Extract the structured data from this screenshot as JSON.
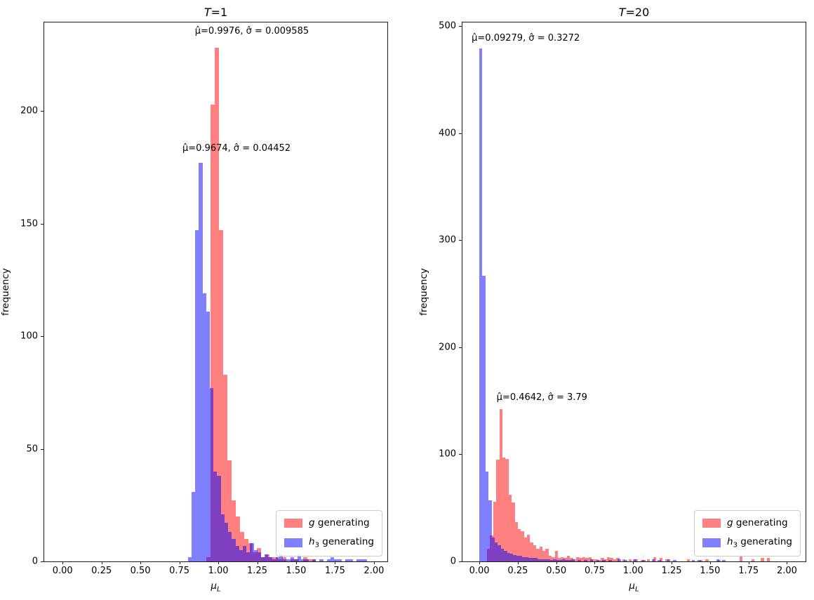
{
  "figure": {
    "background": "#ffffff",
    "colors": {
      "red_series": "#ff8080",
      "blue_series_rgba": "rgba(0,0,255,0.5)",
      "blue_legend_patch": "#8080ff",
      "overlap_visual": "#7f3fbf",
      "spine": "#1a1a1a",
      "legend_border": "#cccccc"
    }
  },
  "chart_data": [
    {
      "type": "histogram",
      "title": {
        "var": "T",
        "rest": "=1"
      },
      "xlabel": {
        "var": "μ",
        "sub": "L"
      },
      "ylabel": "frequency",
      "xlim": [
        -0.118,
        2.086
      ],
      "ylim": [
        0,
        239.3
      ],
      "grid": false,
      "legend_position": "lower right",
      "xticks": [
        {
          "v": 0.0,
          "label": "0.00"
        },
        {
          "v": 0.25,
          "label": "0.25"
        },
        {
          "v": 0.5,
          "label": "0.50"
        },
        {
          "v": 0.75,
          "label": "0.75"
        },
        {
          "v": 1.0,
          "label": "1.00"
        },
        {
          "v": 1.25,
          "label": "1.25"
        },
        {
          "v": 1.5,
          "label": "1.50"
        },
        {
          "v": 1.75,
          "label": "1.75"
        },
        {
          "v": 2.0,
          "label": "2.00"
        }
      ],
      "yticks": [
        {
          "v": 0,
          "label": "0"
        },
        {
          "v": 50,
          "label": "50"
        },
        {
          "v": 100,
          "label": "100"
        },
        {
          "v": 150,
          "label": "150"
        },
        {
          "v": 200,
          "label": "200"
        }
      ],
      "annotations": [
        {
          "text": "μ̂=0.9976, σ̂ = 0.009585",
          "x": 0.85,
          "y": 233
        },
        {
          "text": "μ̂=0.9674, σ̂ = 0.04452",
          "x": 0.77,
          "y": 181
        }
      ],
      "legend": [
        {
          "var": "g",
          "rest": " generating",
          "color": "#ff8080"
        },
        {
          "var": "h",
          "sub": "3",
          "rest": " generating",
          "color": "#8080ff"
        }
      ],
      "series": [
        {
          "name": "g generating",
          "color": "#ff8080",
          "zorder": 1,
          "bin_width": 0.027,
          "bars": [
            [
              0.924,
              2
            ],
            [
              0.951,
              203
            ],
            [
              0.978,
              228
            ],
            [
              1.005,
              147
            ],
            [
              1.032,
              83
            ],
            [
              1.059,
              45
            ],
            [
              1.086,
              27
            ],
            [
              1.113,
              20
            ],
            [
              1.14,
              13
            ],
            [
              1.167,
              10
            ],
            [
              1.194,
              8
            ],
            [
              1.221,
              4
            ],
            [
              1.248,
              6
            ],
            [
              1.275,
              2
            ],
            [
              1.302,
              3
            ],
            [
              1.329,
              2
            ],
            [
              1.356,
              2
            ],
            [
              1.383,
              1
            ],
            [
              1.41,
              2
            ],
            [
              1.464,
              1
            ],
            [
              1.491,
              1
            ],
            [
              1.545,
              2
            ],
            [
              1.572,
              1
            ],
            [
              1.599,
              1
            ]
          ]
        },
        {
          "name": "h3 generating",
          "color": "rgba(0,0,255,0.5)",
          "zorder": 2,
          "bin_width": 0.0235,
          "bars": [
            [
              0.805,
              2
            ],
            [
              0.8285,
              31
            ],
            [
              0.852,
              147
            ],
            [
              0.8755,
              177
            ],
            [
              0.899,
              119
            ],
            [
              0.9225,
              111
            ],
            [
              0.946,
              77
            ],
            [
              0.9695,
              40
            ],
            [
              0.993,
              38
            ],
            [
              1.0165,
              21
            ],
            [
              1.04,
              17
            ],
            [
              1.0635,
              13
            ],
            [
              1.087,
              10
            ],
            [
              1.1105,
              7
            ],
            [
              1.134,
              5
            ],
            [
              1.1575,
              7
            ],
            [
              1.181,
              4
            ],
            [
              1.2045,
              8
            ],
            [
              1.228,
              5
            ],
            [
              1.2515,
              4
            ],
            [
              1.275,
              2
            ],
            [
              1.2985,
              3
            ],
            [
              1.322,
              2
            ],
            [
              1.3455,
              1
            ],
            [
              1.369,
              2
            ],
            [
              1.3925,
              3
            ],
            [
              1.416,
              1
            ],
            [
              1.4395,
              1
            ],
            [
              1.463,
              2
            ],
            [
              1.4865,
              1
            ],
            [
              1.51,
              3
            ],
            [
              1.5335,
              1
            ],
            [
              1.557,
              1
            ],
            [
              1.604,
              1
            ],
            [
              1.651,
              1
            ],
            [
              1.698,
              1
            ],
            [
              1.7215,
              2
            ],
            [
              1.745,
              1
            ],
            [
              1.7685,
              1
            ],
            [
              1.816,
              1
            ],
            [
              1.8395,
              1
            ],
            [
              1.887,
              1
            ],
            [
              1.9105,
              1
            ],
            [
              1.934,
              1
            ]
          ]
        }
      ]
    },
    {
      "type": "histogram",
      "title": {
        "var": "T",
        "rest": "=20"
      },
      "xlabel": {
        "var": "μ",
        "sub": "L"
      },
      "ylabel": "frequency",
      "xlim": [
        -0.11,
        2.121
      ],
      "ylim": [
        0,
        503.4
      ],
      "grid": false,
      "legend_position": "lower right",
      "xticks": [
        {
          "v": 0.0,
          "label": "0.00"
        },
        {
          "v": 0.25,
          "label": "0.25"
        },
        {
          "v": 0.5,
          "label": "0.50"
        },
        {
          "v": 0.75,
          "label": "0.75"
        },
        {
          "v": 1.0,
          "label": "1.00"
        },
        {
          "v": 1.25,
          "label": "1.25"
        },
        {
          "v": 1.5,
          "label": "1.50"
        },
        {
          "v": 1.75,
          "label": "1.75"
        },
        {
          "v": 2.0,
          "label": "2.00"
        }
      ],
      "yticks": [
        {
          "v": 0,
          "label": "0"
        },
        {
          "v": 100,
          "label": "100"
        },
        {
          "v": 200,
          "label": "200"
        },
        {
          "v": 300,
          "label": "300"
        },
        {
          "v": 400,
          "label": "400"
        },
        {
          "v": 500,
          "label": "500"
        }
      ],
      "annotations": [
        {
          "text": "μ̂=0.09279, σ̂ = 0.3272",
          "x": -0.05,
          "y": 484
        },
        {
          "text": "μ̂=0.4642, σ̂ = 3.79",
          "x": 0.112,
          "y": 148
        }
      ],
      "legend": [
        {
          "var": "g",
          "rest": " generating",
          "color": "#ff8080"
        },
        {
          "var": "h",
          "sub": "3",
          "rest": " generating",
          "color": "#8080ff"
        }
      ],
      "series": [
        {
          "name": "g generating",
          "color": "#ff8080",
          "zorder": 1,
          "bin_width": 0.02,
          "bars": [
            [
              0.05,
              12
            ],
            [
              0.07,
              24
            ],
            [
              0.09,
              56
            ],
            [
              0.11,
              95
            ],
            [
              0.13,
              142
            ],
            [
              0.15,
              97
            ],
            [
              0.17,
              96
            ],
            [
              0.19,
              62
            ],
            [
              0.21,
              55
            ],
            [
              0.23,
              37
            ],
            [
              0.25,
              30
            ],
            [
              0.27,
              28
            ],
            [
              0.29,
              22
            ],
            [
              0.31,
              25
            ],
            [
              0.33,
              18
            ],
            [
              0.35,
              15
            ],
            [
              0.37,
              12
            ],
            [
              0.39,
              14
            ],
            [
              0.41,
              10
            ],
            [
              0.43,
              12
            ],
            [
              0.45,
              5
            ],
            [
              0.47,
              4
            ],
            [
              0.49,
              10
            ],
            [
              0.51,
              3
            ],
            [
              0.53,
              4
            ],
            [
              0.55,
              3
            ],
            [
              0.57,
              5
            ],
            [
              0.59,
              3
            ],
            [
              0.61,
              2
            ],
            [
              0.63,
              4
            ],
            [
              0.65,
              3
            ],
            [
              0.67,
              4
            ],
            [
              0.69,
              3
            ],
            [
              0.71,
              4
            ],
            [
              0.73,
              2
            ],
            [
              0.75,
              2
            ],
            [
              0.77,
              1
            ],
            [
              0.79,
              3
            ],
            [
              0.81,
              2
            ],
            [
              0.83,
              4
            ],
            [
              0.85,
              3
            ],
            [
              0.87,
              2
            ],
            [
              0.89,
              3
            ],
            [
              0.93,
              2
            ],
            [
              0.97,
              2
            ],
            [
              1.01,
              2
            ],
            [
              1.05,
              1
            ],
            [
              1.09,
              2
            ],
            [
              1.13,
              4
            ],
            [
              1.17,
              3
            ],
            [
              1.21,
              2
            ],
            [
              1.35,
              2
            ],
            [
              1.43,
              1
            ],
            [
              1.47,
              2
            ],
            [
              1.55,
              1
            ],
            [
              1.69,
              5
            ],
            [
              1.77,
              2
            ],
            [
              1.83,
              3
            ],
            [
              1.87,
              3
            ]
          ]
        },
        {
          "name": "h3 generating",
          "color": "rgba(0,0,255,0.5)",
          "zorder": 2,
          "bin_width": 0.02,
          "bars": [
            [
              0.0,
              479
            ],
            [
              0.02,
              267
            ],
            [
              0.04,
              84
            ],
            [
              0.06,
              57
            ],
            [
              0.08,
              22
            ],
            [
              0.1,
              18
            ],
            [
              0.12,
              15
            ],
            [
              0.14,
              12
            ],
            [
              0.16,
              10
            ],
            [
              0.18,
              8
            ],
            [
              0.2,
              7
            ],
            [
              0.22,
              6
            ],
            [
              0.24,
              5
            ],
            [
              0.26,
              5
            ],
            [
              0.28,
              4
            ],
            [
              0.3,
              4
            ],
            [
              0.32,
              3
            ],
            [
              0.34,
              3
            ],
            [
              0.36,
              3
            ],
            [
              0.38,
              2
            ],
            [
              0.4,
              2
            ],
            [
              0.42,
              2
            ],
            [
              0.44,
              2
            ],
            [
              0.46,
              1
            ],
            [
              0.48,
              2
            ],
            [
              0.5,
              1
            ],
            [
              0.52,
              1
            ],
            [
              0.54,
              2
            ],
            [
              0.56,
              1
            ],
            [
              0.58,
              1
            ],
            [
              0.6,
              2
            ],
            [
              0.64,
              1
            ],
            [
              0.68,
              1
            ],
            [
              0.72,
              2
            ],
            [
              0.76,
              1
            ],
            [
              0.8,
              1
            ],
            [
              0.84,
              1
            ],
            [
              0.9,
              2
            ],
            [
              0.94,
              1
            ],
            [
              1.0,
              2
            ],
            [
              1.06,
              1
            ],
            [
              1.12,
              2
            ],
            [
              1.16,
              1
            ],
            [
              1.22,
              2
            ],
            [
              1.26,
              1
            ],
            [
              1.38,
              1
            ],
            [
              1.42,
              1
            ],
            [
              1.54,
              2
            ],
            [
              1.58,
              1
            ]
          ]
        }
      ]
    }
  ]
}
